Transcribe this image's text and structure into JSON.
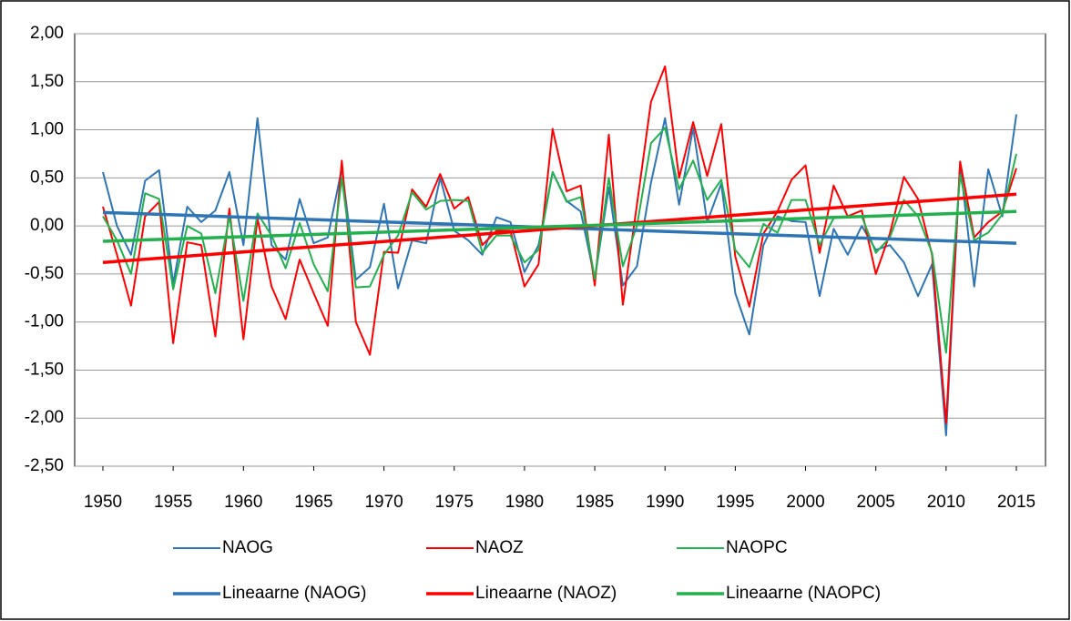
{
  "chart_data": {
    "type": "line",
    "x": [
      1950,
      1951,
      1952,
      1953,
      1954,
      1955,
      1956,
      1957,
      1958,
      1959,
      1960,
      1961,
      1962,
      1963,
      1964,
      1965,
      1966,
      1967,
      1968,
      1969,
      1970,
      1971,
      1972,
      1973,
      1974,
      1975,
      1976,
      1977,
      1978,
      1979,
      1980,
      1981,
      1982,
      1983,
      1984,
      1985,
      1986,
      1987,
      1988,
      1989,
      1990,
      1991,
      1992,
      1993,
      1994,
      1995,
      1996,
      1997,
      1998,
      1999,
      2000,
      2001,
      2002,
      2003,
      2004,
      2005,
      2006,
      2007,
      2008,
      2009,
      2010,
      2011,
      2012,
      2013,
      2014,
      2015
    ],
    "series": [
      {
        "name": "NAOG",
        "color": "#2e75b6",
        "values": [
          0.56,
          0.0,
          -0.3,
          0.47,
          0.58,
          -0.6,
          0.2,
          0.04,
          0.16,
          0.56,
          -0.2,
          1.12,
          -0.2,
          -0.35,
          0.28,
          -0.18,
          -0.12,
          0.6,
          -0.56,
          -0.43,
          0.23,
          -0.65,
          -0.15,
          -0.18,
          0.5,
          -0.05,
          -0.15,
          -0.3,
          0.09,
          0.04,
          -0.48,
          -0.2,
          0.56,
          0.26,
          0.15,
          -0.55,
          0.4,
          -0.62,
          -0.42,
          0.45,
          1.12,
          0.22,
          1.02,
          0.04,
          0.44,
          -0.7,
          -1.13,
          -0.2,
          0.1,
          0.05,
          0.04,
          -0.73,
          -0.03,
          -0.3,
          0.0,
          -0.25,
          -0.2,
          -0.38,
          -0.73,
          -0.4,
          -2.18,
          0.65,
          -0.63,
          0.59,
          0.1,
          1.16
        ]
      },
      {
        "name": "NAOZ",
        "color": "#ff0000",
        "values": [
          0.2,
          -0.3,
          -0.83,
          0.1,
          0.25,
          -1.22,
          -0.17,
          -0.2,
          -1.15,
          0.18,
          -1.18,
          0.08,
          -0.63,
          -0.97,
          -0.35,
          -0.7,
          -1.04,
          0.68,
          -1.0,
          -1.34,
          -0.27,
          -0.28,
          0.38,
          0.2,
          0.54,
          0.18,
          0.3,
          -0.2,
          -0.05,
          -0.05,
          -0.63,
          -0.4,
          1.01,
          0.36,
          0.42,
          -0.62,
          0.95,
          -0.82,
          0.22,
          1.29,
          1.66,
          0.5,
          1.08,
          0.52,
          1.06,
          -0.32,
          -0.84,
          -0.08,
          0.15,
          0.48,
          0.63,
          -0.28,
          0.42,
          0.1,
          0.16,
          -0.5,
          -0.08,
          0.51,
          0.28,
          -0.3,
          -2.05,
          0.67,
          -0.12,
          0.04,
          0.15,
          0.6
        ]
      },
      {
        "name": "NAOPC",
        "color": "#22b14c",
        "values": [
          0.1,
          -0.15,
          -0.5,
          0.34,
          0.28,
          -0.66,
          0.0,
          -0.08,
          -0.7,
          0.1,
          -0.78,
          0.13,
          -0.1,
          -0.44,
          0.03,
          -0.4,
          -0.68,
          0.5,
          -0.64,
          -0.63,
          -0.3,
          -0.1,
          0.35,
          0.17,
          0.26,
          0.27,
          0.26,
          -0.28,
          -0.1,
          -0.1,
          -0.38,
          -0.25,
          0.56,
          0.25,
          0.3,
          -0.55,
          0.5,
          -0.42,
          0.0,
          0.86,
          1.02,
          0.38,
          0.68,
          0.27,
          0.48,
          -0.25,
          -0.43,
          0.02,
          -0.07,
          0.27,
          0.27,
          -0.2,
          0.08,
          0.1,
          0.1,
          -0.28,
          -0.12,
          0.27,
          0.1,
          -0.28,
          -1.32,
          0.53,
          -0.15,
          -0.07,
          0.12,
          0.75
        ]
      }
    ],
    "trendlines": [
      {
        "name": "Lineaarne (NAOG)",
        "color": "#2e75b6",
        "x": [
          1950,
          2015
        ],
        "values": [
          0.14,
          -0.18
        ]
      },
      {
        "name": "Lineaarne (NAOZ)",
        "color": "#ff0000",
        "x": [
          1950,
          2015
        ],
        "values": [
          -0.38,
          0.33
        ]
      },
      {
        "name": "Lineaarne (NAOPC)",
        "color": "#22b14c",
        "x": [
          1950,
          2015
        ],
        "values": [
          -0.16,
          0.15
        ]
      }
    ],
    "xlim": [
      1950,
      2015
    ],
    "xticks": [
      1950,
      1955,
      1960,
      1965,
      1970,
      1975,
      1980,
      1985,
      1990,
      1995,
      2000,
      2005,
      2010,
      2015
    ],
    "ylim": [
      -2.5,
      2.0
    ],
    "yticks": [
      {
        "value": -2.5,
        "label": "-2,50"
      },
      {
        "value": -2.0,
        "label": "-2,00"
      },
      {
        "value": -1.5,
        "label": "-1,50"
      },
      {
        "value": -1.0,
        "label": "-1,00"
      },
      {
        "value": -0.5,
        "label": "-0,50"
      },
      {
        "value": 0.0,
        "label": "0,00"
      },
      {
        "value": 0.5,
        "label": "0,50"
      },
      {
        "value": 1.0,
        "label": "1,00"
      },
      {
        "value": 1.5,
        "label": "1,50"
      },
      {
        "value": 2.0,
        "label": "2,00"
      }
    ],
    "grid": true
  }
}
